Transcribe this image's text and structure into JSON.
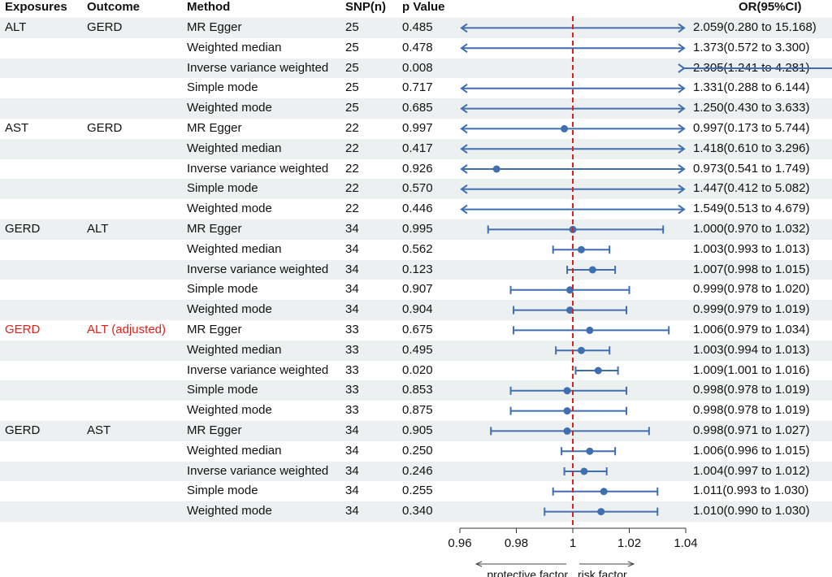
{
  "headers": {
    "exposures": "Exposures",
    "outcome": "Outcome",
    "method": "Method",
    "snp": "SNP(n)",
    "pvalue": "p Value",
    "or": "OR(95%CI)"
  },
  "colors": {
    "point": "#3f6fb0",
    "reference": "#e0211b",
    "shade": "#edf0f0",
    "highlight_text": "#e0211b"
  },
  "chart_data": {
    "type": "forest",
    "reference_line": 1,
    "xlim": [
      0.96,
      1.04
    ],
    "xticks": [
      0.96,
      0.98,
      1,
      1.02,
      1.04
    ],
    "xtick_labels": [
      "0.96",
      "0.98",
      "1",
      "1.02",
      "1.04"
    ],
    "annotations": {
      "left": "protective factor",
      "right": "risk factor"
    },
    "rows": [
      {
        "exposure": "ALT",
        "outcome": "GERD",
        "method": "MR Egger",
        "snp": "25",
        "p": "0.485",
        "or": 2.059,
        "lo": 0.28,
        "hi": 15.168,
        "label": "2.059(0.280 to 15.168)"
      },
      {
        "exposure": "",
        "outcome": "",
        "method": "Weighted median",
        "snp": "25",
        "p": "0.478",
        "or": 1.373,
        "lo": 0.572,
        "hi": 3.3,
        "label": "1.373(0.572 to 3.300)"
      },
      {
        "exposure": "",
        "outcome": "",
        "method": "Inverse variance weighted",
        "snp": "25",
        "p": "0.008",
        "or": 2.305,
        "lo": 1.241,
        "hi": 4.281,
        "label": "2.305(1.241 to 4.281)"
      },
      {
        "exposure": "",
        "outcome": "",
        "method": "Simple mode",
        "snp": "25",
        "p": "0.717",
        "or": 1.331,
        "lo": 0.288,
        "hi": 6.144,
        "label": "1.331(0.288 to 6.144)"
      },
      {
        "exposure": "",
        "outcome": "",
        "method": "Weighted mode",
        "snp": "25",
        "p": "0.685",
        "or": 1.25,
        "lo": 0.43,
        "hi": 3.633,
        "label": "1.250(0.430 to 3.633)"
      },
      {
        "exposure": "AST",
        "outcome": "GERD",
        "method": "MR Egger",
        "snp": "22",
        "p": "0.997",
        "or": 0.997,
        "lo": 0.173,
        "hi": 5.744,
        "label": "0.997(0.173 to 5.744)"
      },
      {
        "exposure": "",
        "outcome": "",
        "method": "Weighted median",
        "snp": "22",
        "p": "0.417",
        "or": 1.418,
        "lo": 0.61,
        "hi": 3.296,
        "label": "1.418(0.610 to 3.296)"
      },
      {
        "exposure": "",
        "outcome": "",
        "method": "Inverse variance weighted",
        "snp": "22",
        "p": "0.926",
        "or": 0.973,
        "lo": 0.541,
        "hi": 1.749,
        "label": "0.973(0.541 to 1.749)"
      },
      {
        "exposure": "",
        "outcome": "",
        "method": "Simple mode",
        "snp": "22",
        "p": "0.570",
        "or": 1.447,
        "lo": 0.412,
        "hi": 5.082,
        "label": "1.447(0.412 to 5.082)"
      },
      {
        "exposure": "",
        "outcome": "",
        "method": "Weighted mode",
        "snp": "22",
        "p": "0.446",
        "or": 1.549,
        "lo": 0.513,
        "hi": 4.679,
        "label": "1.549(0.513 to 4.679)"
      },
      {
        "exposure": "GERD",
        "outcome": "ALT",
        "method": "MR Egger",
        "snp": "34",
        "p": "0.995",
        "or": 1.0,
        "lo": 0.97,
        "hi": 1.032,
        "label": "1.000(0.970 to 1.032)"
      },
      {
        "exposure": "",
        "outcome": "",
        "method": "Weighted median",
        "snp": "34",
        "p": "0.562",
        "or": 1.003,
        "lo": 0.993,
        "hi": 1.013,
        "label": "1.003(0.993 to 1.013)"
      },
      {
        "exposure": "",
        "outcome": "",
        "method": "Inverse variance weighted",
        "snp": "34",
        "p": "0.123",
        "or": 1.007,
        "lo": 0.998,
        "hi": 1.015,
        "label": "1.007(0.998 to 1.015)"
      },
      {
        "exposure": "",
        "outcome": "",
        "method": "Simple mode",
        "snp": "34",
        "p": "0.907",
        "or": 0.999,
        "lo": 0.978,
        "hi": 1.02,
        "label": "0.999(0.978 to 1.020)"
      },
      {
        "exposure": "",
        "outcome": "",
        "method": "Weighted mode",
        "snp": "34",
        "p": "0.904",
        "or": 0.999,
        "lo": 0.979,
        "hi": 1.019,
        "label": "0.999(0.979 to 1.019)"
      },
      {
        "exposure": "GERD",
        "outcome": "ALT (adjusted)",
        "highlight": true,
        "method": "MR Egger",
        "snp": "33",
        "p": "0.675",
        "or": 1.006,
        "lo": 0.979,
        "hi": 1.034,
        "label": "1.006(0.979 to 1.034)"
      },
      {
        "exposure": "",
        "outcome": "",
        "method": "Weighted median",
        "snp": "33",
        "p": "0.495",
        "or": 1.003,
        "lo": 0.994,
        "hi": 1.013,
        "label": "1.003(0.994 to 1.013)"
      },
      {
        "exposure": "",
        "outcome": "",
        "method": "Inverse variance weighted",
        "snp": "33",
        "p": "0.020",
        "or": 1.009,
        "lo": 1.001,
        "hi": 1.016,
        "label": "1.009(1.001 to 1.016)"
      },
      {
        "exposure": "",
        "outcome": "",
        "method": "Simple mode",
        "snp": "33",
        "p": "0.853",
        "or": 0.998,
        "lo": 0.978,
        "hi": 1.019,
        "label": "0.998(0.978 to 1.019)"
      },
      {
        "exposure": "",
        "outcome": "",
        "method": "Weighted mode",
        "snp": "33",
        "p": "0.875",
        "or": 0.998,
        "lo": 0.978,
        "hi": 1.019,
        "label": "0.998(0.978 to 1.019)"
      },
      {
        "exposure": "GERD",
        "outcome": "AST",
        "method": "MR Egger",
        "snp": "34",
        "p": "0.905",
        "or": 0.998,
        "lo": 0.971,
        "hi": 1.027,
        "label": "0.998(0.971 to 1.027)"
      },
      {
        "exposure": "",
        "outcome": "",
        "method": "Weighted median",
        "snp": "34",
        "p": "0.250",
        "or": 1.006,
        "lo": 0.996,
        "hi": 1.015,
        "label": "1.006(0.996 to 1.015)"
      },
      {
        "exposure": "",
        "outcome": "",
        "method": "Inverse variance weighted",
        "snp": "34",
        "p": "0.246",
        "or": 1.004,
        "lo": 0.997,
        "hi": 1.012,
        "label": "1.004(0.997 to 1.012)"
      },
      {
        "exposure": "",
        "outcome": "",
        "method": "Simple mode",
        "snp": "34",
        "p": "0.255",
        "or": 1.011,
        "lo": 0.993,
        "hi": 1.03,
        "label": "1.011(0.993 to 1.030)"
      },
      {
        "exposure": "",
        "outcome": "",
        "method": "Weighted mode",
        "snp": "34",
        "p": "0.340",
        "or": 1.01,
        "lo": 0.99,
        "hi": 1.03,
        "label": "1.010(0.990 to 1.030)"
      }
    ]
  }
}
